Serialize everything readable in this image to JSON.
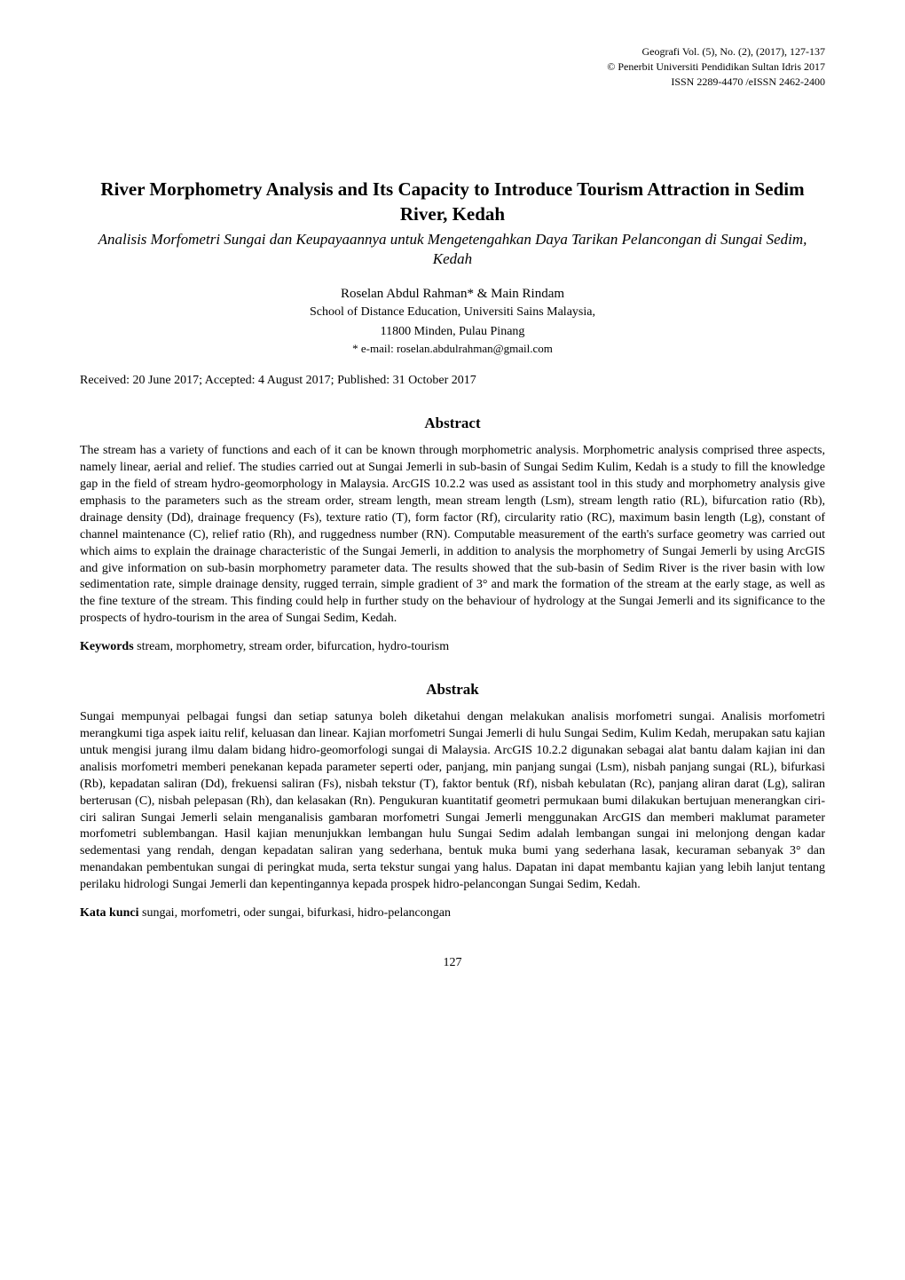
{
  "header": {
    "journal_line": "Geografi Vol. (5), No. (2), (2017), 127-137",
    "publisher_line": "© Penerbit Universiti Pendidikan Sultan Idris 2017",
    "issn_line": "ISSN 2289-4470 /eISSN 2462-2400"
  },
  "title": "River Morphometry Analysis and Its Capacity to Introduce Tourism Attraction in Sedim River, Kedah",
  "subtitle": "Analisis Morfometri Sungai dan Keupayaannya untuk Mengetengahkan Daya Tarikan Pelancongan di Sungai Sedim, Kedah",
  "authors": "Roselan Abdul Rahman* & Main Rindam",
  "affiliation_line1": "School of Distance Education, Universiti Sains Malaysia,",
  "affiliation_line2": "11800 Minden, Pulau Pinang",
  "email": "* e-mail: roselan.abdulrahman@gmail.com",
  "dates": "Received: 20 June 2017; Accepted: 4 August 2017; Published: 31 October 2017",
  "abstract_en": {
    "heading": "Abstract",
    "body": "The stream has a variety of functions and each of it can be known through morphometric analysis. Morphometric analysis comprised three aspects, namely linear, aerial and relief. The studies carried out at Sungai Jemerli in sub-basin of Sungai Sedim Kulim, Kedah is a study to fill the knowledge gap in the field of stream hydro-geomorphology in Malaysia. ArcGIS 10.2.2 was used as assistant tool in this study and morphometry analysis give emphasis to the parameters such as the stream order, stream length, mean stream length (Lsm), stream length ratio (RL), bifurcation ratio (Rb), drainage density (Dd), drainage frequency (Fs), texture ratio (T), form factor (Rf), circularity ratio (RC), maximum basin length (Lg), constant of channel maintenance (C), relief ratio (Rh), and ruggedness number (RN). Computable measurement of the earth's surface geometry was carried out which aims to explain the drainage characteristic of the Sungai Jemerli, in addition to analysis the morphometry of Sungai Jemerli by using ArcGIS and give information on sub-basin morphometry parameter data. The results showed that the sub-basin of Sedim River is the river basin with low sedimentation rate, simple drainage density, rugged terrain, simple gradient of 3° and mark the formation of the stream at the early stage, as well as the fine texture of the stream. This finding could help in further study on the behaviour of hydrology at the Sungai Jemerli and its significance to the prospects of hydro-tourism in the area of Sungai Sedim, Kedah.",
    "keywords_label": "Keywords",
    "keywords": " stream, morphometry, stream order, bifurcation, hydro-tourism"
  },
  "abstract_ms": {
    "heading": "Abstrak",
    "body": "Sungai mempunyai pelbagai fungsi dan setiap satunya boleh diketahui dengan melakukan analisis morfometri sungai. Analisis morfometri merangkumi tiga aspek iaitu relif, keluasan dan linear. Kajian morfometri Sungai Jemerli di hulu Sungai Sedim, Kulim Kedah, merupakan satu kajian untuk mengisi jurang ilmu dalam bidang hidro-geomorfologi sungai di Malaysia. ArcGIS 10.2.2 digunakan sebagai alat bantu dalam kajian ini dan analisis morfometri memberi penekanan kepada parameter seperti oder, panjang, min panjang sungai (Lsm), nisbah panjang sungai (RL), bifurkasi (Rb), kepadatan saliran (Dd), frekuensi saliran (Fs), nisbah tekstur (T), faktor bentuk (Rf), nisbah kebulatan (Rc), panjang aliran darat (Lg), saliran berterusan (C), nisbah pelepasan (Rh), dan kelasakan (Rn). Pengukuran kuantitatif geometri permukaan bumi dilakukan bertujuan menerangkan ciri-ciri saliran Sungai Jemerli selain menganalisis gambaran morfometri Sungai Jemerli menggunakan ArcGIS dan memberi maklumat parameter morfometri sublembangan. Hasil kajian menunjukkan lembangan hulu Sungai Sedim adalah lembangan sungai ini melonjong dengan kadar sedementasi yang rendah, dengan kepadatan saliran yang sederhana, bentuk muka bumi yang sederhana lasak, kecuraman sebanyak 3° dan menandakan pembentukan sungai di peringkat muda, serta tekstur sungai yang halus. Dapatan ini dapat membantu kajian yang lebih lanjut tentang perilaku hidrologi Sungai Jemerli dan kepentingannya kepada prospek hidro-pelancongan Sungai Sedim, Kedah.",
    "keywords_label": "Kata kunci",
    "keywords": " sungai, morfometri, oder sungai, bifurkasi, hidro-pelancongan"
  },
  "page_number": "127",
  "colors": {
    "background": "#ffffff",
    "text": "#000000"
  },
  "typography": {
    "font_family": "Times New Roman",
    "title_fontsize_pt": 16,
    "subtitle_fontsize_pt": 13,
    "body_fontsize_pt": 10.5,
    "header_fontsize_pt": 9
  }
}
